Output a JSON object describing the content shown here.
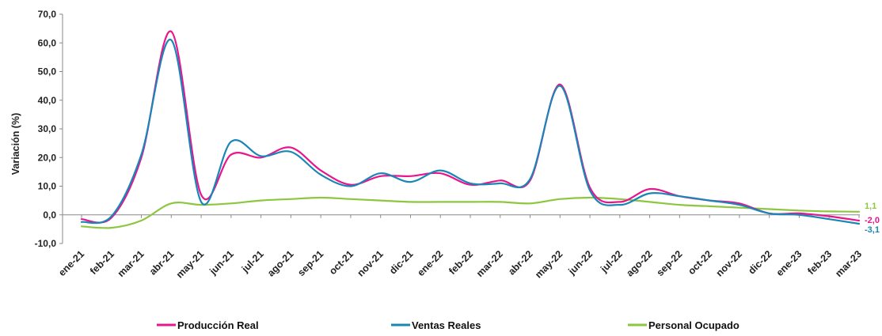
{
  "chart_data": {
    "type": "line",
    "title": "",
    "xlabel": "",
    "ylabel": "Variación (%)",
    "ylim": [
      -10,
      70
    ],
    "yticks": [
      "70,0",
      "60,0",
      "50,0",
      "40,0",
      "30,0",
      "20,0",
      "10,0",
      "0,0",
      "-10,0"
    ],
    "grid": false,
    "legend_position": "bottom",
    "categories": [
      "ene-21",
      "feb-21",
      "mar-21",
      "abr-21",
      "may-21",
      "jun-21",
      "jul-21",
      "ago-21",
      "sep-21",
      "oct-21",
      "nov-21",
      "dic-21",
      "ene-22",
      "feb-22",
      "mar-22",
      "abr-22",
      "may-22",
      "jun-22",
      "jul-22",
      "ago-22",
      "sep-22",
      "oct-22",
      "nov-22",
      "dic-22",
      "ene-23",
      "feb-23",
      "mar-23"
    ],
    "series": [
      {
        "name": "Producción Real",
        "color": "#e8168c",
        "values": [
          -1.5,
          -1.0,
          20.0,
          64.0,
          7.0,
          21.0,
          20.0,
          23.5,
          15.5,
          10.5,
          13.5,
          13.5,
          14.5,
          10.5,
          12.0,
          12.0,
          45.5,
          9.5,
          4.5,
          9.0,
          6.5,
          5.0,
          4.0,
          0.5,
          0.5,
          -0.5,
          -2.0
        ],
        "end_label": "-2,0"
      },
      {
        "name": "Ventas Reales",
        "color": "#1a86b8",
        "values": [
          -2.5,
          -0.5,
          21.0,
          61.0,
          4.5,
          25.5,
          20.5,
          22.0,
          14.0,
          10.0,
          14.5,
          11.5,
          15.5,
          11.0,
          11.0,
          12.5,
          45.0,
          8.5,
          3.5,
          7.5,
          6.5,
          5.0,
          3.5,
          0.5,
          0.0,
          -1.5,
          -3.1
        ],
        "end_label": "-3,1"
      },
      {
        "name": "Personal Ocupado",
        "color": "#8dc63f",
        "values": [
          -4.0,
          -4.5,
          -2.0,
          4.0,
          3.5,
          4.0,
          5.0,
          5.5,
          6.0,
          5.5,
          5.0,
          4.5,
          4.5,
          4.5,
          4.5,
          4.0,
          5.5,
          6.0,
          5.5,
          4.5,
          3.5,
          3.0,
          2.5,
          2.0,
          1.5,
          1.2,
          1.1
        ],
        "end_label": "1,1"
      }
    ]
  }
}
